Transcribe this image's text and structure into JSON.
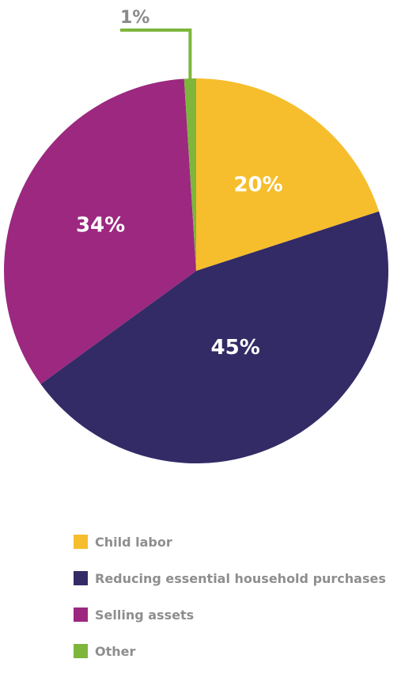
{
  "chart_data": {
    "type": "pie",
    "title": "",
    "legend_position": "bottom",
    "categories": [
      "Child labor",
      "Reducing essential household purchases",
      "Selling assets",
      "Other"
    ],
    "values": [
      20,
      45,
      34,
      1
    ],
    "data_labels": [
      "20%",
      "45%",
      "34%",
      "1%"
    ],
    "colors": [
      "#F6BE2C",
      "#332B66",
      "#9C2880",
      "#7DB63B"
    ]
  }
}
